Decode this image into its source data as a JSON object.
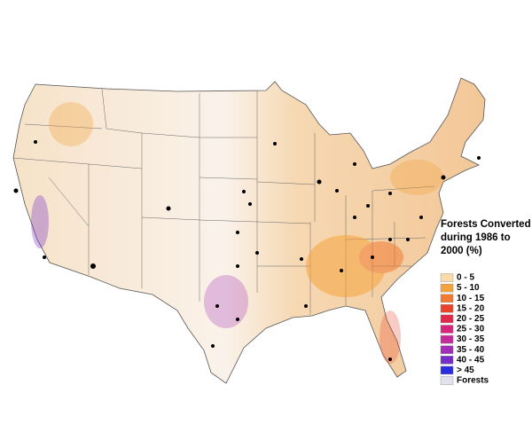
{
  "legend": {
    "title": [
      "Forests Converted",
      "during 1986 to",
      "2000 (%)"
    ],
    "items": [
      {
        "label": "0 - 5",
        "color": "#f7dba8"
      },
      {
        "label": "5 - 10",
        "color": "#f4a43c"
      },
      {
        "label": "10 - 15",
        "color": "#f07a33"
      },
      {
        "label": "15 - 20",
        "color": "#e8442c"
      },
      {
        "label": "20 - 25",
        "color": "#e02a4c"
      },
      {
        "label": "25 - 30",
        "color": "#d6277c"
      },
      {
        "label": "30 - 35",
        "color": "#c42a9c"
      },
      {
        "label": "35 - 40",
        "color": "#a22db6"
      },
      {
        "label": "40 - 45",
        "color": "#752fc8"
      },
      {
        "label": "> 45",
        "color": "#2b2be0"
      },
      {
        "label": "Forests",
        "color": "#e2e2ec"
      }
    ]
  }
}
